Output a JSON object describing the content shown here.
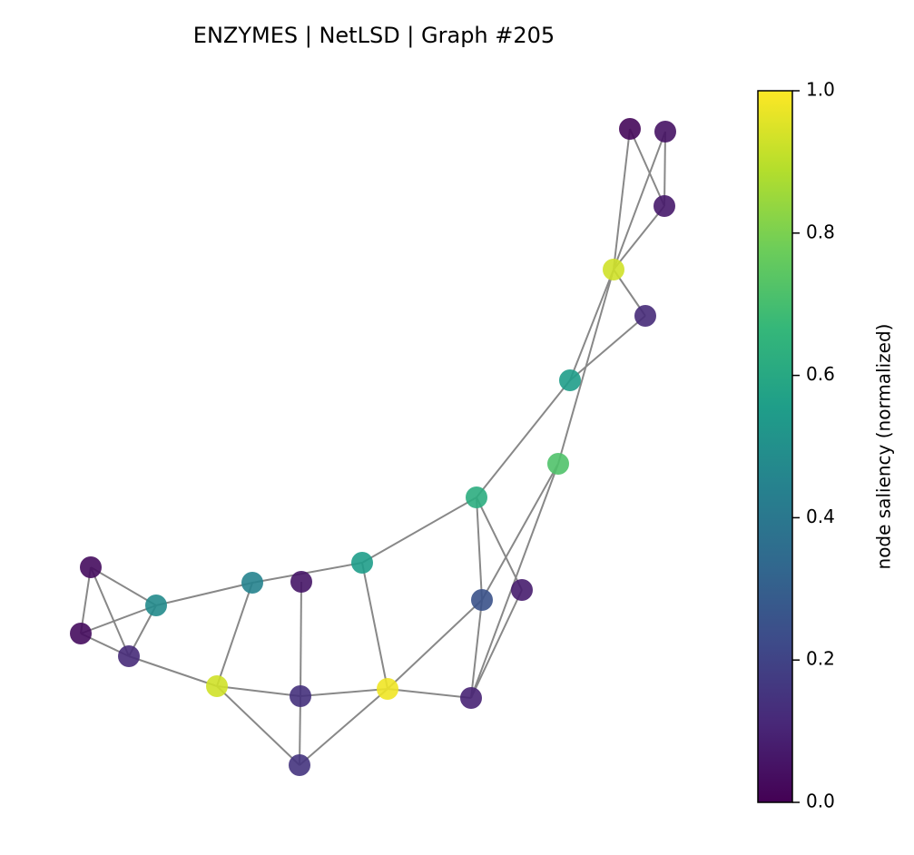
{
  "chart_data": {
    "type": "network",
    "title": "ENZYMES | NetLSD | Graph #205",
    "colorbar_label": "node saliency (normalized)",
    "colormap": "viridis",
    "clim": [
      0,
      1
    ],
    "cticks": [
      {
        "value": 0,
        "label": "0.0"
      },
      0.2,
      0.4,
      0.6,
      0.8,
      {
        "value": 1,
        "label": "1.0"
      }
    ],
    "values": [
      0.02,
      0.05,
      0.07,
      0.93,
      0.12,
      0.55,
      0.72,
      0.62,
      0.25,
      0.08,
      0.55,
      0.06,
      0.45,
      0.48,
      0.03,
      0.03,
      0.12,
      0.93,
      0.14,
      0.98,
      0.1,
      0.15
    ]
  }
}
